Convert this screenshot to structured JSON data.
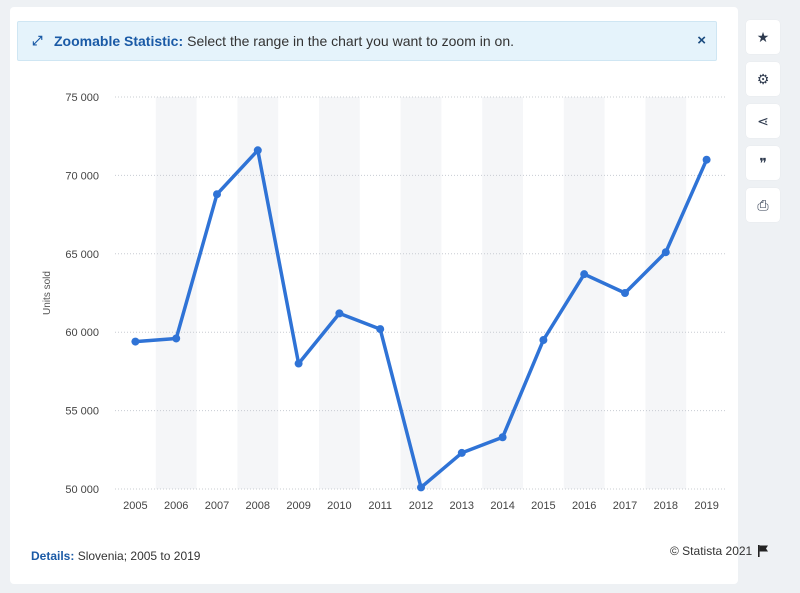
{
  "banner": {
    "title": "Zoomable Statistic:",
    "text": "Select the range in the chart you want to zoom in on.",
    "close": "×"
  },
  "toolbar": [
    {
      "name": "star-icon",
      "glyph": "★"
    },
    {
      "name": "gear-icon",
      "glyph": "⚙"
    },
    {
      "name": "share-icon",
      "glyph": "⋖"
    },
    {
      "name": "quote-icon",
      "glyph": "❞"
    },
    {
      "name": "print-icon",
      "glyph": "⎙"
    }
  ],
  "footer": {
    "details_label": "Details:",
    "details_text": "Slovenia; 2005 to 2019",
    "credit": "© Statista 2021"
  },
  "chart_data": {
    "type": "line",
    "title": "",
    "xlabel": "",
    "ylabel": "Units sold",
    "categories": [
      "2005",
      "2006",
      "2007",
      "2008",
      "2009",
      "2010",
      "2011",
      "2012",
      "2013",
      "2014",
      "2015",
      "2016",
      "2017",
      "2018",
      "2019"
    ],
    "series": [
      {
        "name": "",
        "values": [
          59400,
          59600,
          68800,
          71600,
          58000,
          61200,
          60200,
          50100,
          52300,
          53300,
          59500,
          63700,
          62500,
          65100,
          71000
        ]
      }
    ],
    "ylim": [
      50000,
      75000
    ],
    "yticks": [
      50000,
      55000,
      60000,
      65000,
      70000,
      75000
    ],
    "ytick_labels": [
      "50 000",
      "55 000",
      "60 000",
      "65 000",
      "70 000",
      "75 000"
    ],
    "grid": true,
    "line_color": "#2f73d6"
  }
}
